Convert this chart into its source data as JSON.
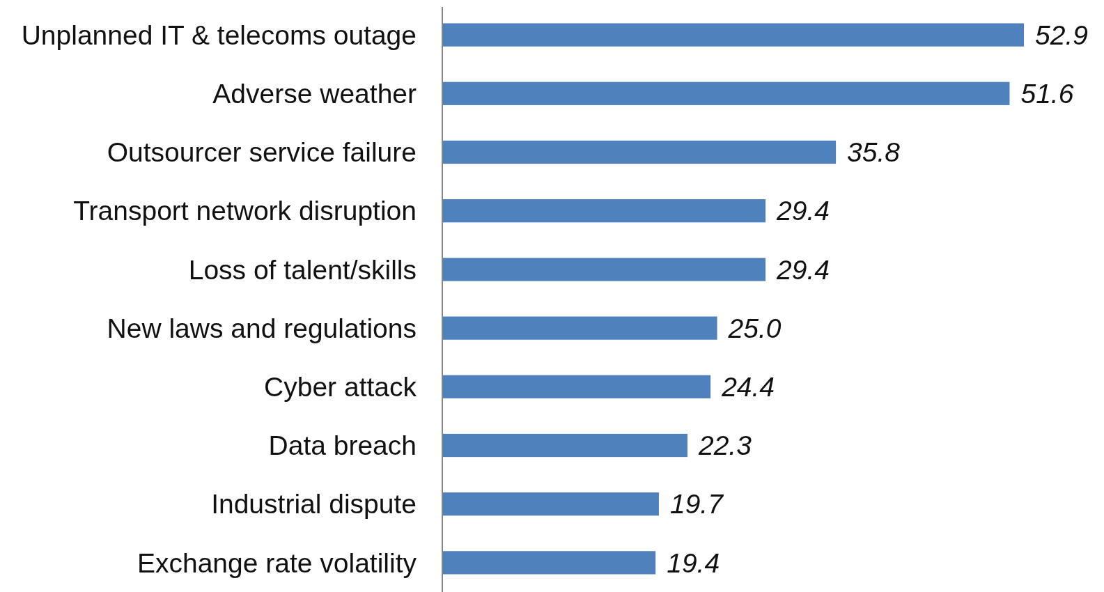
{
  "chart_data": {
    "type": "bar",
    "orientation": "horizontal",
    "categories": [
      "Unplanned IT & telecoms outage",
      "Adverse weather",
      "Outsourcer service failure",
      "Transport network disruption",
      "Loss of talent/skills",
      "New laws and regulations",
      "Cyber attack",
      "Data breach",
      "Industrial dispute",
      "Exchange rate volatility"
    ],
    "values": [
      52.9,
      51.6,
      35.8,
      29.4,
      29.4,
      25.0,
      24.4,
      22.3,
      19.7,
      19.4
    ],
    "value_labels": [
      "52.9",
      "51.6",
      "35.8",
      "29.4",
      "29.4",
      "25.0",
      "24.4",
      "22.3",
      "19.7",
      "19.4"
    ],
    "color": "#4f81bd"
  }
}
